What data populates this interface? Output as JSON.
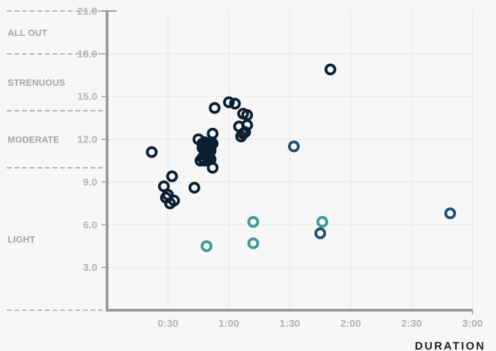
{
  "chart_data": {
    "type": "scatter",
    "xlabel": "DURATION",
    "ylabel": "",
    "x_unit": "minutes",
    "xlim": [
      0,
      180
    ],
    "ylim": [
      0,
      21
    ],
    "x_ticks": [
      30,
      60,
      90,
      120,
      150,
      180
    ],
    "x_tick_labels": [
      "0:30",
      "1:00",
      "1:30",
      "2:00",
      "2:30",
      "3:00"
    ],
    "y_ticks": [
      3,
      6,
      9,
      12,
      15,
      18,
      21
    ],
    "y_tick_labels": [
      "3.0",
      "6.0",
      "9.0",
      "12.0",
      "15.0",
      "18.0",
      "21.0"
    ],
    "grid": true,
    "zones": [
      {
        "label": "LIGHT",
        "from": 0,
        "to": 10
      },
      {
        "label": "MODERATE",
        "from": 10,
        "to": 14
      },
      {
        "label": "STRENUOUS",
        "from": 14,
        "to": 18
      },
      {
        "label": "ALL OUT",
        "from": 18,
        "to": 21
      }
    ],
    "series": [
      {
        "color": "#0b1f33",
        "x": [
          22,
          28,
          29,
          30,
          31,
          32,
          33,
          43,
          45,
          46,
          47,
          47,
          47,
          48,
          48,
          48,
          49,
          49,
          49,
          50,
          50,
          50,
          50,
          51,
          51,
          51,
          51,
          52,
          52,
          52,
          53,
          60,
          63,
          65,
          66,
          67,
          67,
          68,
          69,
          69,
          110
        ],
        "y": [
          11.1,
          8.7,
          7.9,
          8.1,
          7.5,
          9.4,
          7.7,
          8.6,
          12.0,
          10.5,
          11.7,
          11.4,
          10.7,
          11.3,
          11.8,
          10.5,
          11.0,
          10.8,
          11.3,
          11.5,
          11.7,
          10.7,
          11.3,
          11.6,
          11.4,
          11.2,
          10.6,
          12.4,
          11.7,
          10.0,
          14.2,
          14.6,
          14.5,
          12.9,
          12.2,
          13.8,
          12.4,
          12.5,
          13.7,
          13.0,
          16.9
        ]
      },
      {
        "color": "#1f4e74",
        "x": [
          92,
          105,
          169
        ],
        "y": [
          11.5,
          5.4,
          6.8
        ]
      },
      {
        "color": "#3c9a98",
        "x": [
          49,
          72,
          72,
          106
        ],
        "y": [
          4.5,
          6.2,
          4.7,
          6.2
        ]
      }
    ]
  }
}
